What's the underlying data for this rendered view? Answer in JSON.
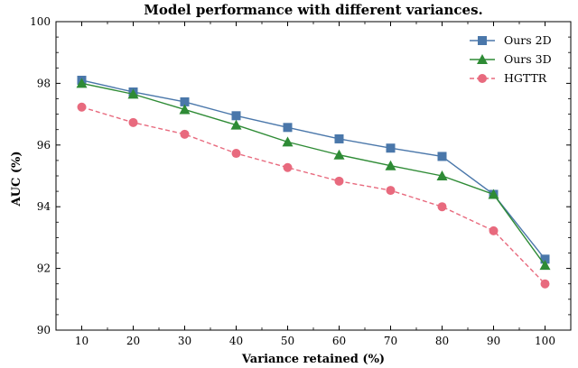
{
  "chart_data": {
    "type": "line",
    "title": "Model performance with different variances.",
    "xlabel": "Variance retained (%)",
    "ylabel": "AUC (%)",
    "x": [
      10,
      20,
      30,
      40,
      50,
      60,
      70,
      80,
      90,
      100
    ],
    "x_ticks": [
      "10",
      "20",
      "30",
      "40",
      "50",
      "60",
      "70",
      "80",
      "90",
      "100"
    ],
    "y_ticks": [
      "90",
      "92",
      "94",
      "96",
      "98",
      "100"
    ],
    "xlim": [
      5,
      105
    ],
    "ylim": [
      90,
      100
    ],
    "grid": false,
    "legend_position": "top-right",
    "series": [
      {
        "name": "Ours 2D",
        "color": "#4a77aa",
        "marker": "square",
        "line_style": "solid",
        "values": [
          98.1,
          97.72,
          97.4,
          96.95,
          96.57,
          96.2,
          95.9,
          95.63,
          94.4,
          92.3
        ]
      },
      {
        "name": "Ours 3D",
        "color": "#2e8b35",
        "marker": "triangle",
        "line_style": "solid",
        "values": [
          98.0,
          97.65,
          97.15,
          96.65,
          96.1,
          95.68,
          95.33,
          95.0,
          94.4,
          92.1
        ]
      },
      {
        "name": "HGTTR",
        "color": "#e86a7e",
        "marker": "circle",
        "line_style": "dashed",
        "values": [
          97.23,
          96.73,
          96.35,
          95.73,
          95.27,
          94.83,
          94.53,
          94.0,
          93.22,
          91.5
        ]
      }
    ]
  }
}
